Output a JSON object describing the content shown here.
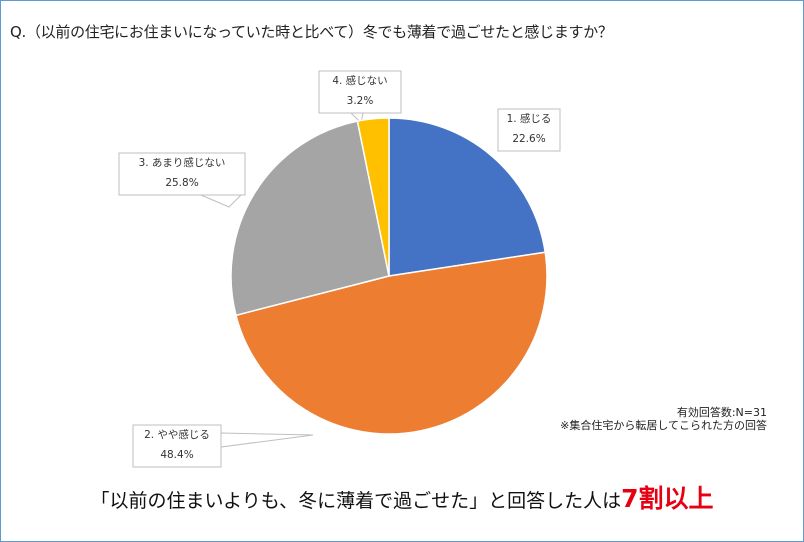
{
  "chart_data": {
    "type": "pie",
    "title": "Q.（以前の住宅にお住まいになっていた時と比べて）冬でも薄着で過ごせたと感じますか？",
    "categories": [
      "1. 感じる",
      "2. やや感じる",
      "3. あまり感じない",
      "4. 感じない"
    ],
    "values": [
      22.6,
      48.4,
      25.8,
      3.2
    ],
    "value_labels": [
      "22.6%",
      "48.4%",
      "25.8%",
      "3.2%"
    ],
    "colors": [
      "#4472c4",
      "#ed7d31",
      "#a5a5a5",
      "#ffc000"
    ],
    "start": "top",
    "direction": "clockwise"
  },
  "note": {
    "n": "有効回答数:N=31",
    "scope": "※集合住宅から転居してこられた方の回答"
  },
  "conclusion": {
    "text": "「以前の住まいよりも、冬に薄着で過ごせた」と回答した人は",
    "highlight": "7割以上"
  }
}
